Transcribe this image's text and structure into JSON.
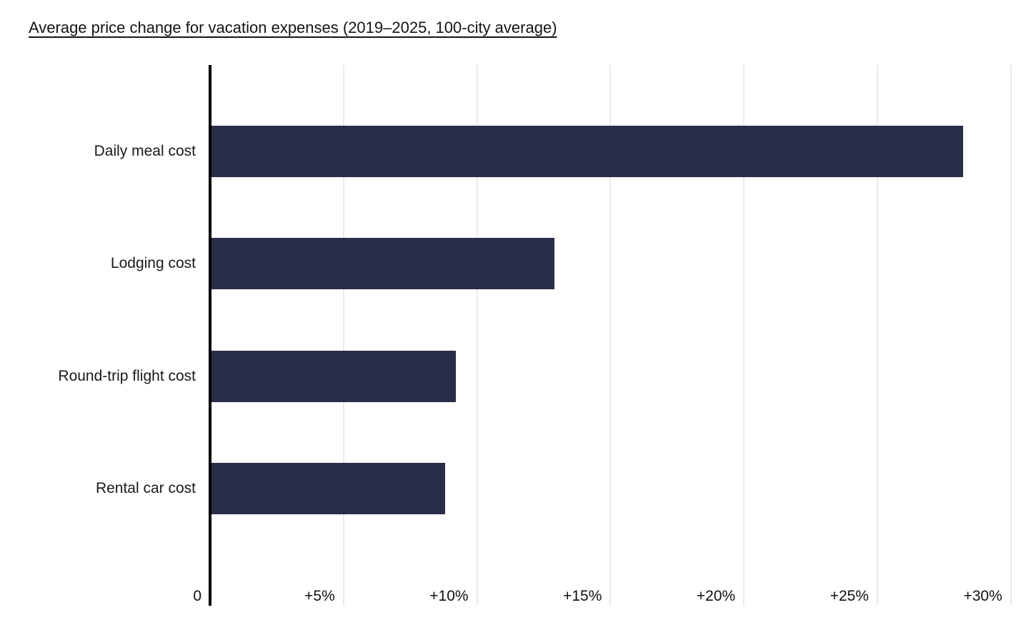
{
  "page": {
    "background": "#ffffff"
  },
  "chart_data": {
    "type": "bar",
    "orientation": "horizontal",
    "title": "Average price change for vacation expenses (2019–2025, 100-city average)",
    "categories": [
      "Daily meal cost",
      "Lodging cost",
      "Round-trip flight cost",
      "Rental car cost"
    ],
    "values": [
      28.2,
      12.9,
      9.2,
      8.8
    ],
    "value_unit": "%",
    "xlim": [
      0,
      30.3
    ],
    "x_ticks": [
      {
        "value": 0,
        "label": "0"
      },
      {
        "value": 5,
        "label": "+5%"
      },
      {
        "value": 10,
        "label": "+10%"
      },
      {
        "value": 15,
        "label": "+15%"
      },
      {
        "value": 20,
        "label": "+20%"
      },
      {
        "value": 25,
        "label": "+25%"
      },
      {
        "value": 30,
        "label": "+30%"
      }
    ],
    "grid": true,
    "legend": "none",
    "colors": {
      "bar": "#2a2d48",
      "gridline": "#eaeaea",
      "axis": "#000000",
      "title_text": "#141419",
      "label_text": "#1a1a1a",
      "tick_text": "#111111"
    }
  }
}
